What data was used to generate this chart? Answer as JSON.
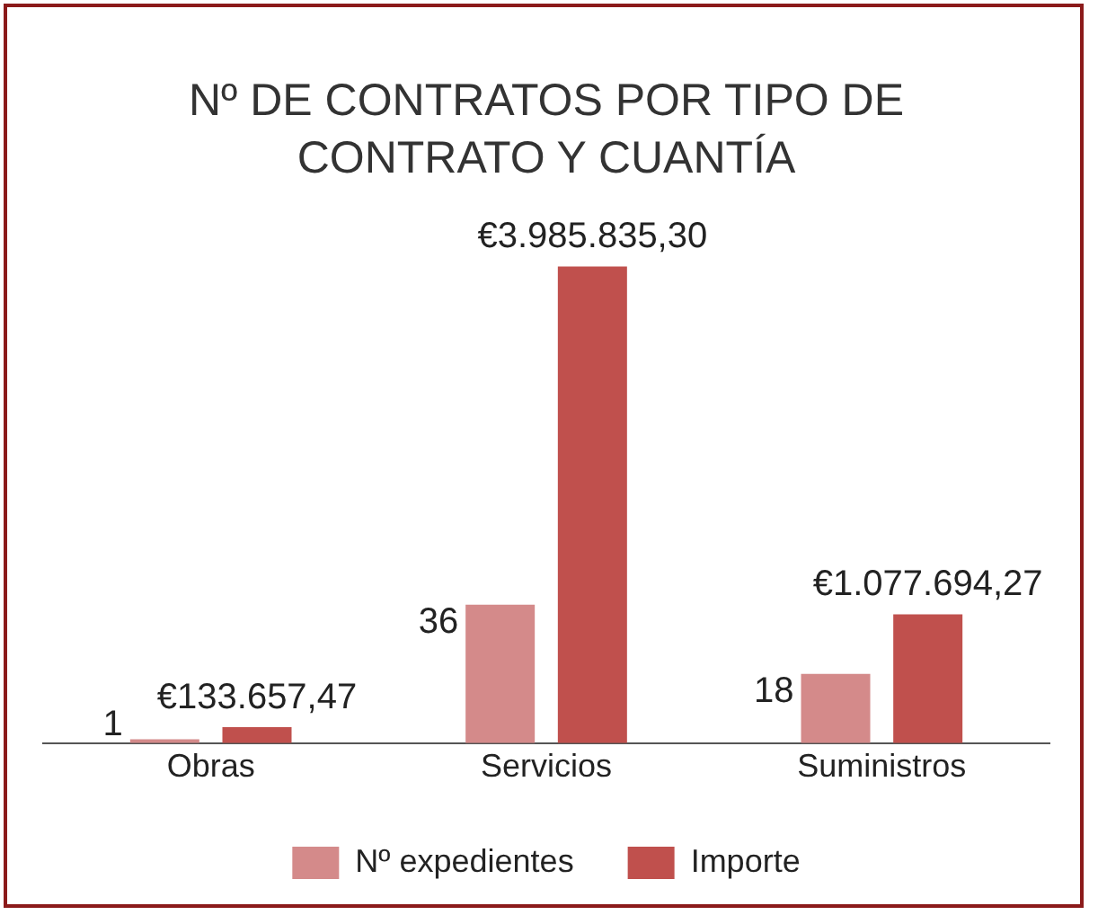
{
  "chart_data": {
    "type": "bar",
    "title": "Nº DE CONTRATOS POR TIPO DE CONTRATO Y CUANTÍA",
    "categories": [
      "Obras",
      "Servicios",
      "Suministros"
    ],
    "series": [
      {
        "name": "Nº expedientes",
        "color": "#d48a8a",
        "axis": "y2",
        "values": [
          1,
          36,
          18
        ],
        "value_labels": [
          "1",
          "36",
          "18"
        ]
      },
      {
        "name": "Importe",
        "color": "#c0504d",
        "axis": "y",
        "values": [
          133657.47,
          3985835.3,
          1077694.27
        ],
        "value_labels": [
          "€133.657,47",
          "€3.985.835,30",
          "€1.077.694,27"
        ]
      }
    ],
    "legend": "bottom",
    "tick_labels": "x"
  }
}
